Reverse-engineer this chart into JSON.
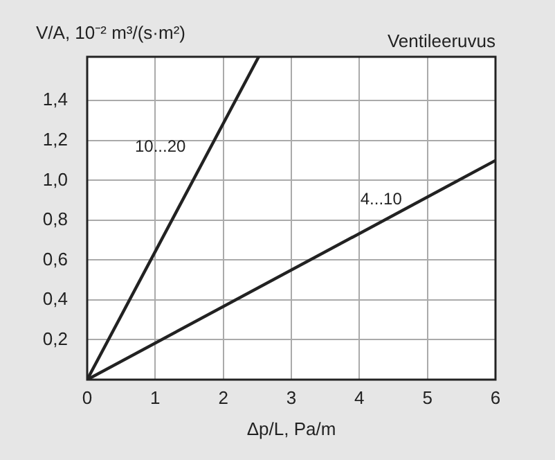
{
  "chart_data": {
    "type": "line",
    "title": "Ventileeruvus",
    "xlabel": "Δp/L, Pa/m",
    "ylabel": "V/A, 10⁻² m³/(s·m²)",
    "series": [
      {
        "name": "10...20",
        "color": "#222222",
        "x": [
          0,
          2.52
        ],
        "values": [
          0,
          1.62
        ]
      },
      {
        "name": "4...10",
        "color": "#222222",
        "x": [
          0,
          6
        ],
        "values": [
          0,
          1.1
        ]
      }
    ],
    "xlim": [
      0,
      6
    ],
    "xticks": [
      0,
      1,
      2,
      3,
      4,
      5,
      6
    ],
    "ylim": [
      0,
      1.62
    ],
    "yticks": [
      {
        "value": 0,
        "label": null
      },
      {
        "value": 0.2,
        "label": "0,2"
      },
      {
        "value": 0.4,
        "label": "0,4"
      },
      {
        "value": 0.6,
        "label": "0,6"
      },
      {
        "value": 0.8,
        "label": "0,8"
      },
      {
        "value": 1.0,
        "label": "1,0"
      },
      {
        "value": 1.2,
        "label": "1,2"
      },
      {
        "value": 1.4,
        "label": "1,4"
      }
    ],
    "grid": true,
    "legend": false,
    "marker": "none",
    "line_style": "solid"
  }
}
